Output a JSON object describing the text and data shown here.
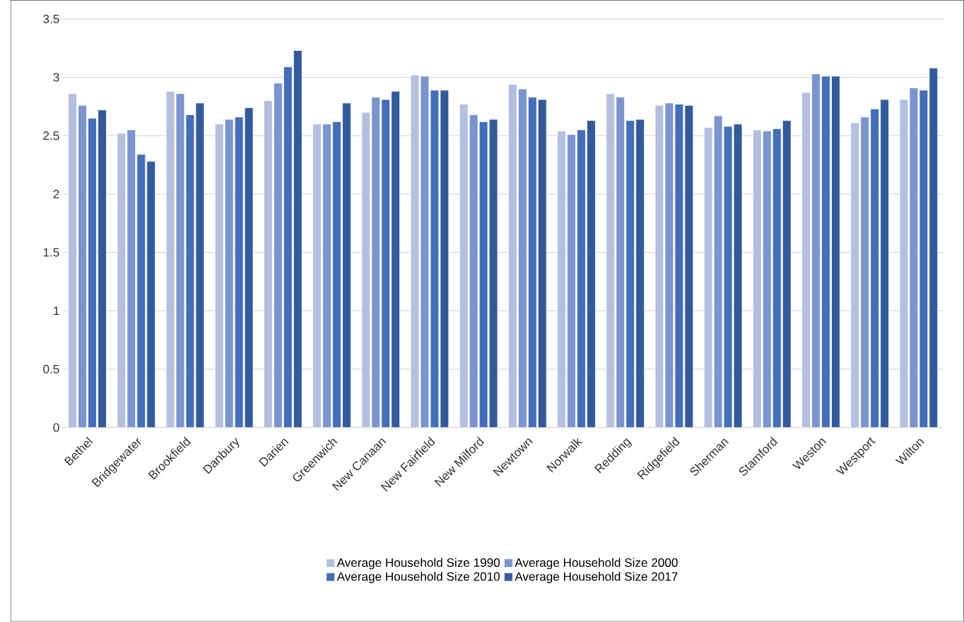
{
  "chart_data": {
    "type": "bar",
    "categories": [
      "Bethel",
      "Bridgewater",
      "Brookfield",
      "Danbury",
      "Darien",
      "Greenwich",
      "New Canaan",
      "New Fairfield",
      "New Milford",
      "Newtown",
      "Norwalk",
      "Redding",
      "Ridgefield",
      "Sherman",
      "Stamford",
      "Weston",
      "Westport",
      "Wilton"
    ],
    "series": [
      {
        "name": "Average Household Size 1990",
        "color": "#b4bfe0",
        "values": [
          2.86,
          2.52,
          2.88,
          2.6,
          2.8,
          2.6,
          2.7,
          3.02,
          2.77,
          2.94,
          2.54,
          2.86,
          2.76,
          2.57,
          2.55,
          2.87,
          2.61,
          2.81
        ]
      },
      {
        "name": "Average Household Size 2000",
        "color": "#7a94d0",
        "values": [
          2.76,
          2.55,
          2.86,
          2.64,
          2.95,
          2.6,
          2.83,
          3.01,
          2.68,
          2.9,
          2.51,
          2.83,
          2.78,
          2.67,
          2.54,
          3.03,
          2.66,
          2.91
        ]
      },
      {
        "name": "Average Household Size 2010",
        "color": "#426ebb",
        "values": [
          2.65,
          2.34,
          2.68,
          2.66,
          3.09,
          2.62,
          2.81,
          2.89,
          2.62,
          2.83,
          2.55,
          2.63,
          2.77,
          2.58,
          2.56,
          3.01,
          2.73,
          2.89
        ]
      },
      {
        "name": "Average Household Size 2017",
        "color": "#335a9c",
        "values": [
          2.72,
          2.28,
          2.78,
          2.74,
          3.23,
          2.78,
          2.88,
          2.89,
          2.64,
          2.81,
          2.63,
          2.64,
          2.76,
          2.6,
          2.63,
          3.01,
          2.81,
          3.08
        ]
      }
    ],
    "ylim": [
      0,
      3.5
    ],
    "yticks": [
      0,
      0.5,
      1,
      1.5,
      2,
      2.5,
      3,
      3.5
    ],
    "grid": "y",
    "legend": "bottom"
  }
}
